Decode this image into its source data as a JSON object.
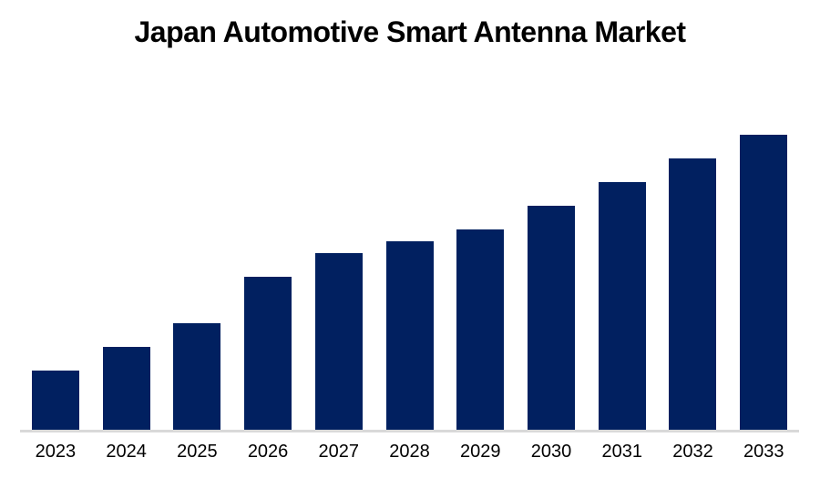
{
  "chart": {
    "background_color": "#ffffff",
    "bar_color": "#012060",
    "axis_line_color": "#d9d9d9",
    "title_color": "#000000",
    "tick_label_color": "#000000"
  },
  "chart_data": {
    "type": "bar",
    "title": "Japan Automotive Smart Antenna Market",
    "categories": [
      "2023",
      "2024",
      "2025",
      "2026",
      "2027",
      "2028",
      "2029",
      "2030",
      "2031",
      "2032",
      "2033"
    ],
    "values": [
      5,
      7,
      9,
      13,
      15,
      16,
      17,
      19,
      21,
      23,
      25
    ],
    "value_note": "no value axis shown in image; values are relative bar heights",
    "xlabel": "",
    "ylabel": "",
    "ylim": [
      0,
      25
    ],
    "grid": false,
    "legend": false
  }
}
